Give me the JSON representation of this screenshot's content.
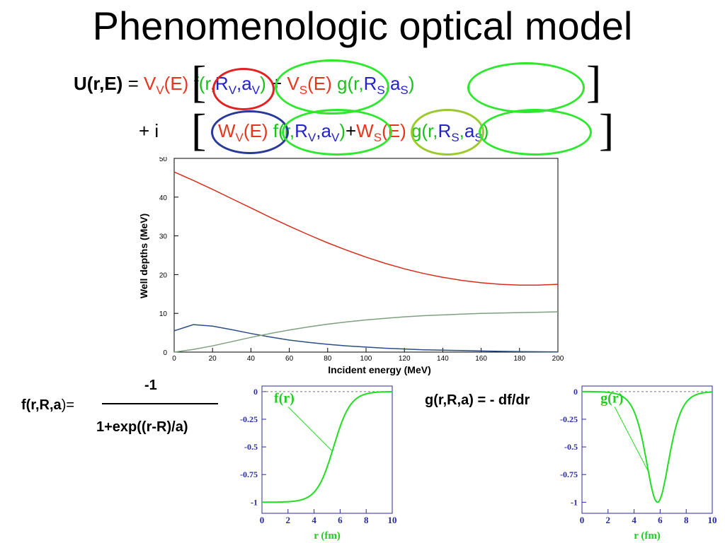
{
  "title": "Phenomenologic optical model",
  "equation": {
    "lhs": "U(r,E)",
    "equals": " = ",
    "line1": {
      "VV": "V",
      "VV_sub": "V",
      "VV_arg": "(E)",
      "f": "f(r,",
      "RV": "R",
      "RV_sub": "V",
      "comma1": ",",
      "aV": "a",
      "aV_sub": "V",
      "close1": ")",
      "plus": " + ",
      "VS": "V",
      "VS_sub": "S",
      "VS_arg": "(E)",
      "g": "g(r,",
      "RS": "R",
      "RS_sub": "S",
      "comma2": ",",
      "aS": "a",
      "aS_sub": "S",
      "close2": ")"
    },
    "line2": {
      "prefix": "+ i",
      "WV": "W",
      "WV_sub": "V",
      "WV_arg": "(E)",
      "f": "f(r,",
      "RV": "R",
      "RV_sub": "V",
      "comma1": ",",
      "aV": "a",
      "aV_sub": "V",
      "close1": ")",
      "plus": "+",
      "WS": "W",
      "WS_sub": "S",
      "WS_arg": "(E)",
      "g": "g(r,",
      "RS": "R",
      "RS_sub": "S",
      "comma2": ",",
      "aS": "a",
      "aS_sub": "S",
      "close2": ")"
    },
    "bracket_open": "[",
    "bracket_close": "]"
  },
  "colors": {
    "depth_red": "#d62e1e",
    "depth_blue": "#2a4f86",
    "depth_gray": "#7fa07f",
    "curve_green": "#22dd22",
    "ellipse_red": "#e22222",
    "ellipse_green": "#2ee82e",
    "ellipse_blue": "#2a3a9a",
    "ellipse_olive": "#9acb2a"
  },
  "chart_data": [
    {
      "type": "line",
      "xlabel": "Incident energy (MeV)",
      "ylabel": "Well depths (MeV)",
      "xlim": [
        0,
        200
      ],
      "ylim": [
        0,
        50
      ],
      "xticks": [
        "0",
        "20",
        "40",
        "60",
        "80",
        "100",
        "120",
        "140",
        "160",
        "180",
        "200"
      ],
      "yticks": [
        "0",
        "10",
        "20",
        "30",
        "40",
        "50"
      ],
      "x": [
        0,
        10,
        20,
        30,
        40,
        50,
        60,
        70,
        80,
        90,
        100,
        110,
        120,
        130,
        140,
        150,
        160,
        170,
        180,
        190,
        200
      ],
      "series": [
        {
          "color": "#d62e1e",
          "values": [
            46.5,
            44.3,
            42.0,
            39.6,
            37.2,
            34.8,
            32.5,
            30.3,
            28.2,
            26.3,
            24.5,
            22.9,
            21.5,
            20.3,
            19.3,
            18.5,
            17.9,
            17.5,
            17.3,
            17.3,
            17.5
          ]
        },
        {
          "color": "#2a4f86",
          "values": [
            5.5,
            7.1,
            6.7,
            5.8,
            4.8,
            3.9,
            3.1,
            2.5,
            2.0,
            1.6,
            1.3,
            1.0,
            0.8,
            0.6,
            0.5,
            0.4,
            0.3,
            0.2,
            0.15,
            0.1,
            0.05
          ]
        },
        {
          "color": "#7fa07f",
          "values": [
            0.0,
            0.7,
            1.6,
            2.7,
            3.8,
            4.8,
            5.7,
            6.5,
            7.2,
            7.8,
            8.3,
            8.7,
            9.1,
            9.4,
            9.6,
            9.8,
            10.0,
            10.1,
            10.2,
            10.3,
            10.4
          ]
        }
      ]
    },
    {
      "type": "line",
      "xlabel": "r (fm)",
      "xlim": [
        0,
        10
      ],
      "ylim": [
        -1.1,
        0.05
      ],
      "xticks": [
        "0",
        "2",
        "4",
        "6",
        "8",
        "10"
      ],
      "yticks": [
        "0",
        "-0.25",
        "-0.5",
        "-0.75",
        "-1"
      ],
      "annotation": "f(r)",
      "R": 5.5,
      "a": 0.65
    },
    {
      "type": "line",
      "xlabel": "r (fm)",
      "xlim": [
        0,
        10
      ],
      "ylim": [
        -1.1,
        0.05
      ],
      "xticks": [
        "0",
        "2",
        "4",
        "6",
        "8",
        "10"
      ],
      "yticks": [
        "0",
        "-0.25",
        "-0.5",
        "-0.75",
        "-1"
      ],
      "annotation": "g(r)",
      "R": 5.8,
      "a": 0.6
    }
  ],
  "formula_f": {
    "lhs": "f(r,R,a",
    "lhs_close": ")=",
    "numerator": "-1",
    "denominator": "1+exp((r-R)/a)"
  },
  "formula_g": "g(r,R,a) = - df/dr"
}
